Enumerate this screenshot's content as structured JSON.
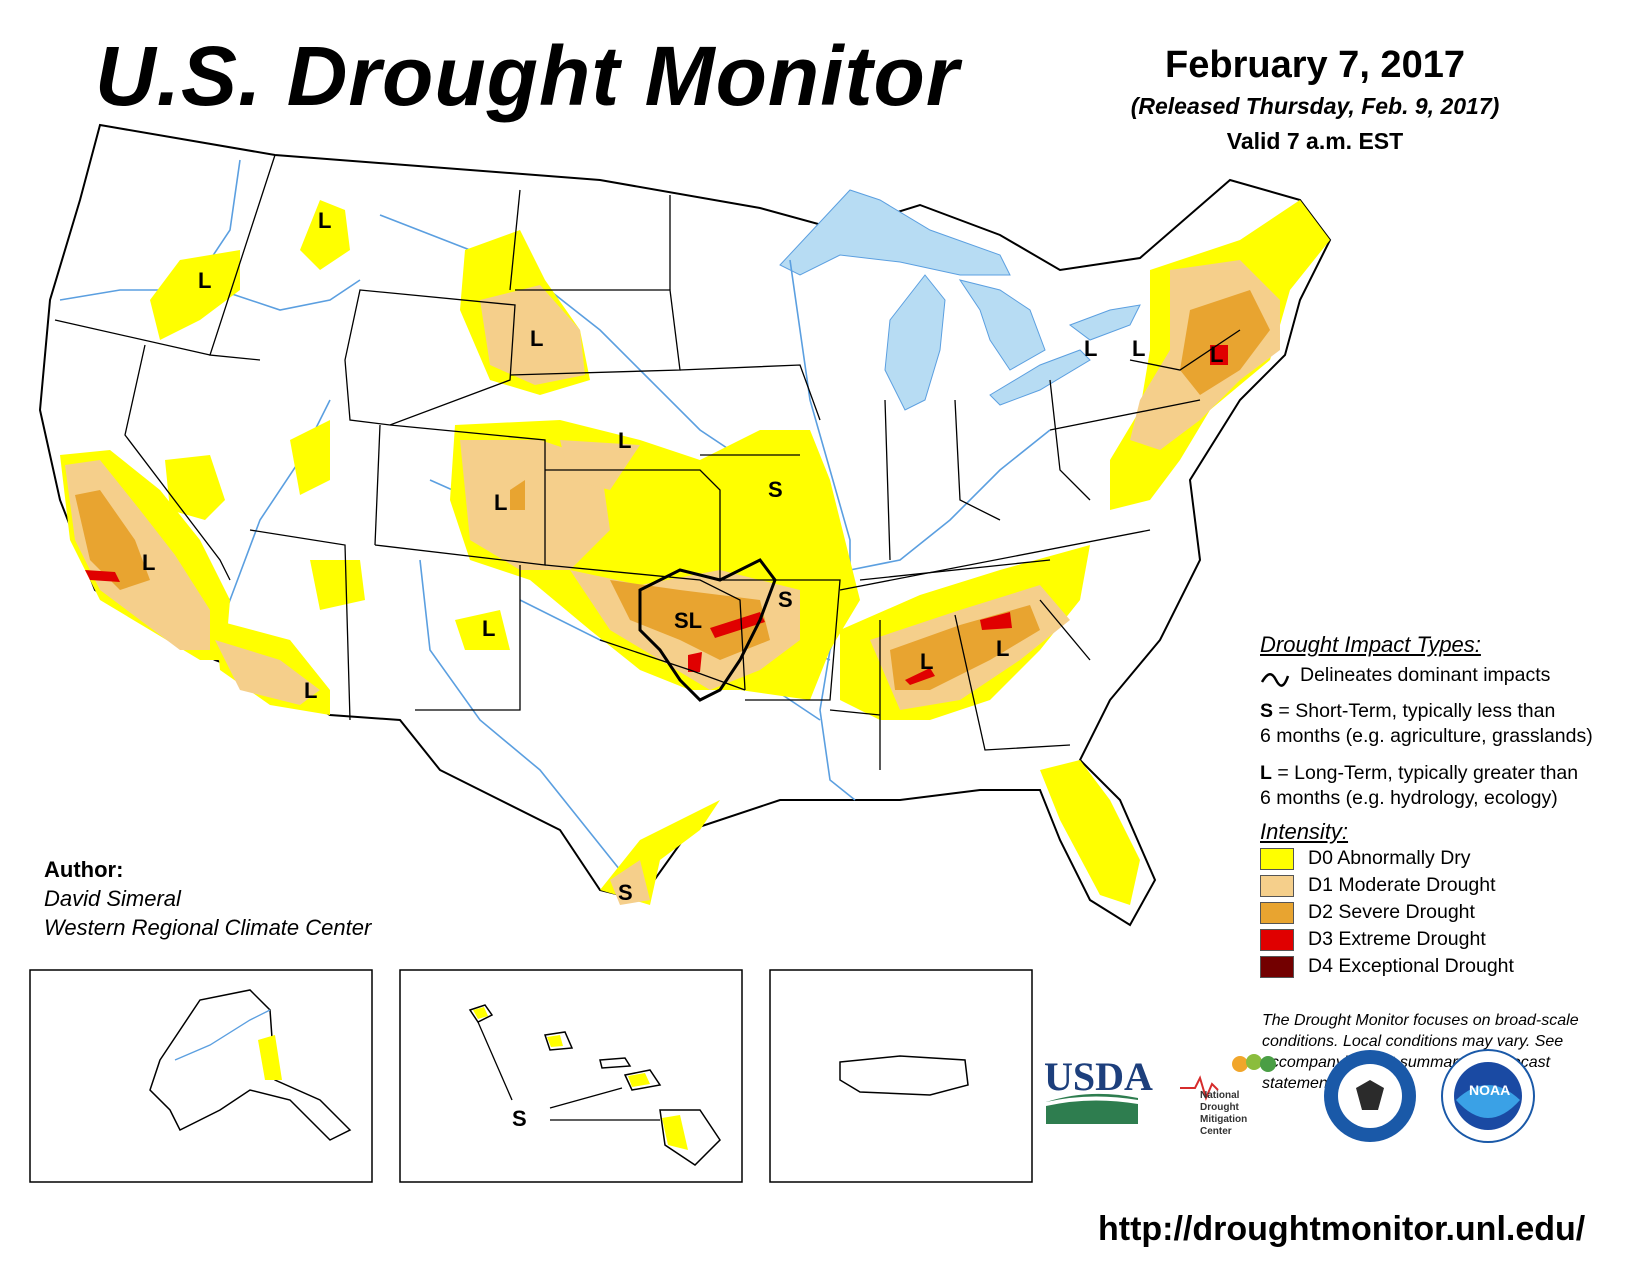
{
  "title": "U.S. Drought Monitor",
  "date": {
    "main": "February 7, 2017",
    "released": "(Released Thursday, Feb. 9, 2017)",
    "valid": "Valid 7 a.m. EST"
  },
  "author": {
    "heading": "Author:",
    "name": "David Simeral",
    "org": "Western Regional Climate Center"
  },
  "legend": {
    "impact_heading": "Drought Impact Types:",
    "delineates": "Delineates dominant impacts",
    "short_letter": "S",
    "short_text_a": " = Short-Term, typically less than",
    "short_text_b": "6 months (e.g. agriculture, grasslands)",
    "long_letter": "L",
    "long_text_a": " = Long-Term, typically greater than",
    "long_text_b": "6 months (e.g. hydrology, ecology)",
    "intensity_heading": "Intensity:",
    "intensity": [
      {
        "label": "D0 Abnormally Dry",
        "color": "#ffff00"
      },
      {
        "label": "D1 Moderate Drought",
        "color": "#f5cf8b"
      },
      {
        "label": "D2 Severe Drought",
        "color": "#e8a430"
      },
      {
        "label": "D3 Extreme Drought",
        "color": "#e00000"
      },
      {
        "label": "D4 Exceptional Drought",
        "color": "#730000"
      }
    ]
  },
  "disclaimer": "The Drought Monitor focuses on broad-scale conditions. Local conditions may vary. See accompanying text summary for forecast statements.",
  "map_labels": {
    "L": "L",
    "S": "S",
    "SL": "SL",
    "hawaii_S": "S"
  },
  "logos": {
    "usda": "USDA",
    "ndmc": [
      "National",
      "Drought",
      "Mitigation",
      "Center"
    ],
    "noaa": "NOAA"
  },
  "url": "http://droughtmonitor.unl.edu/",
  "colors": {
    "water": "#b7dcf3",
    "river": "#5b9fe0",
    "border": "#000000"
  }
}
